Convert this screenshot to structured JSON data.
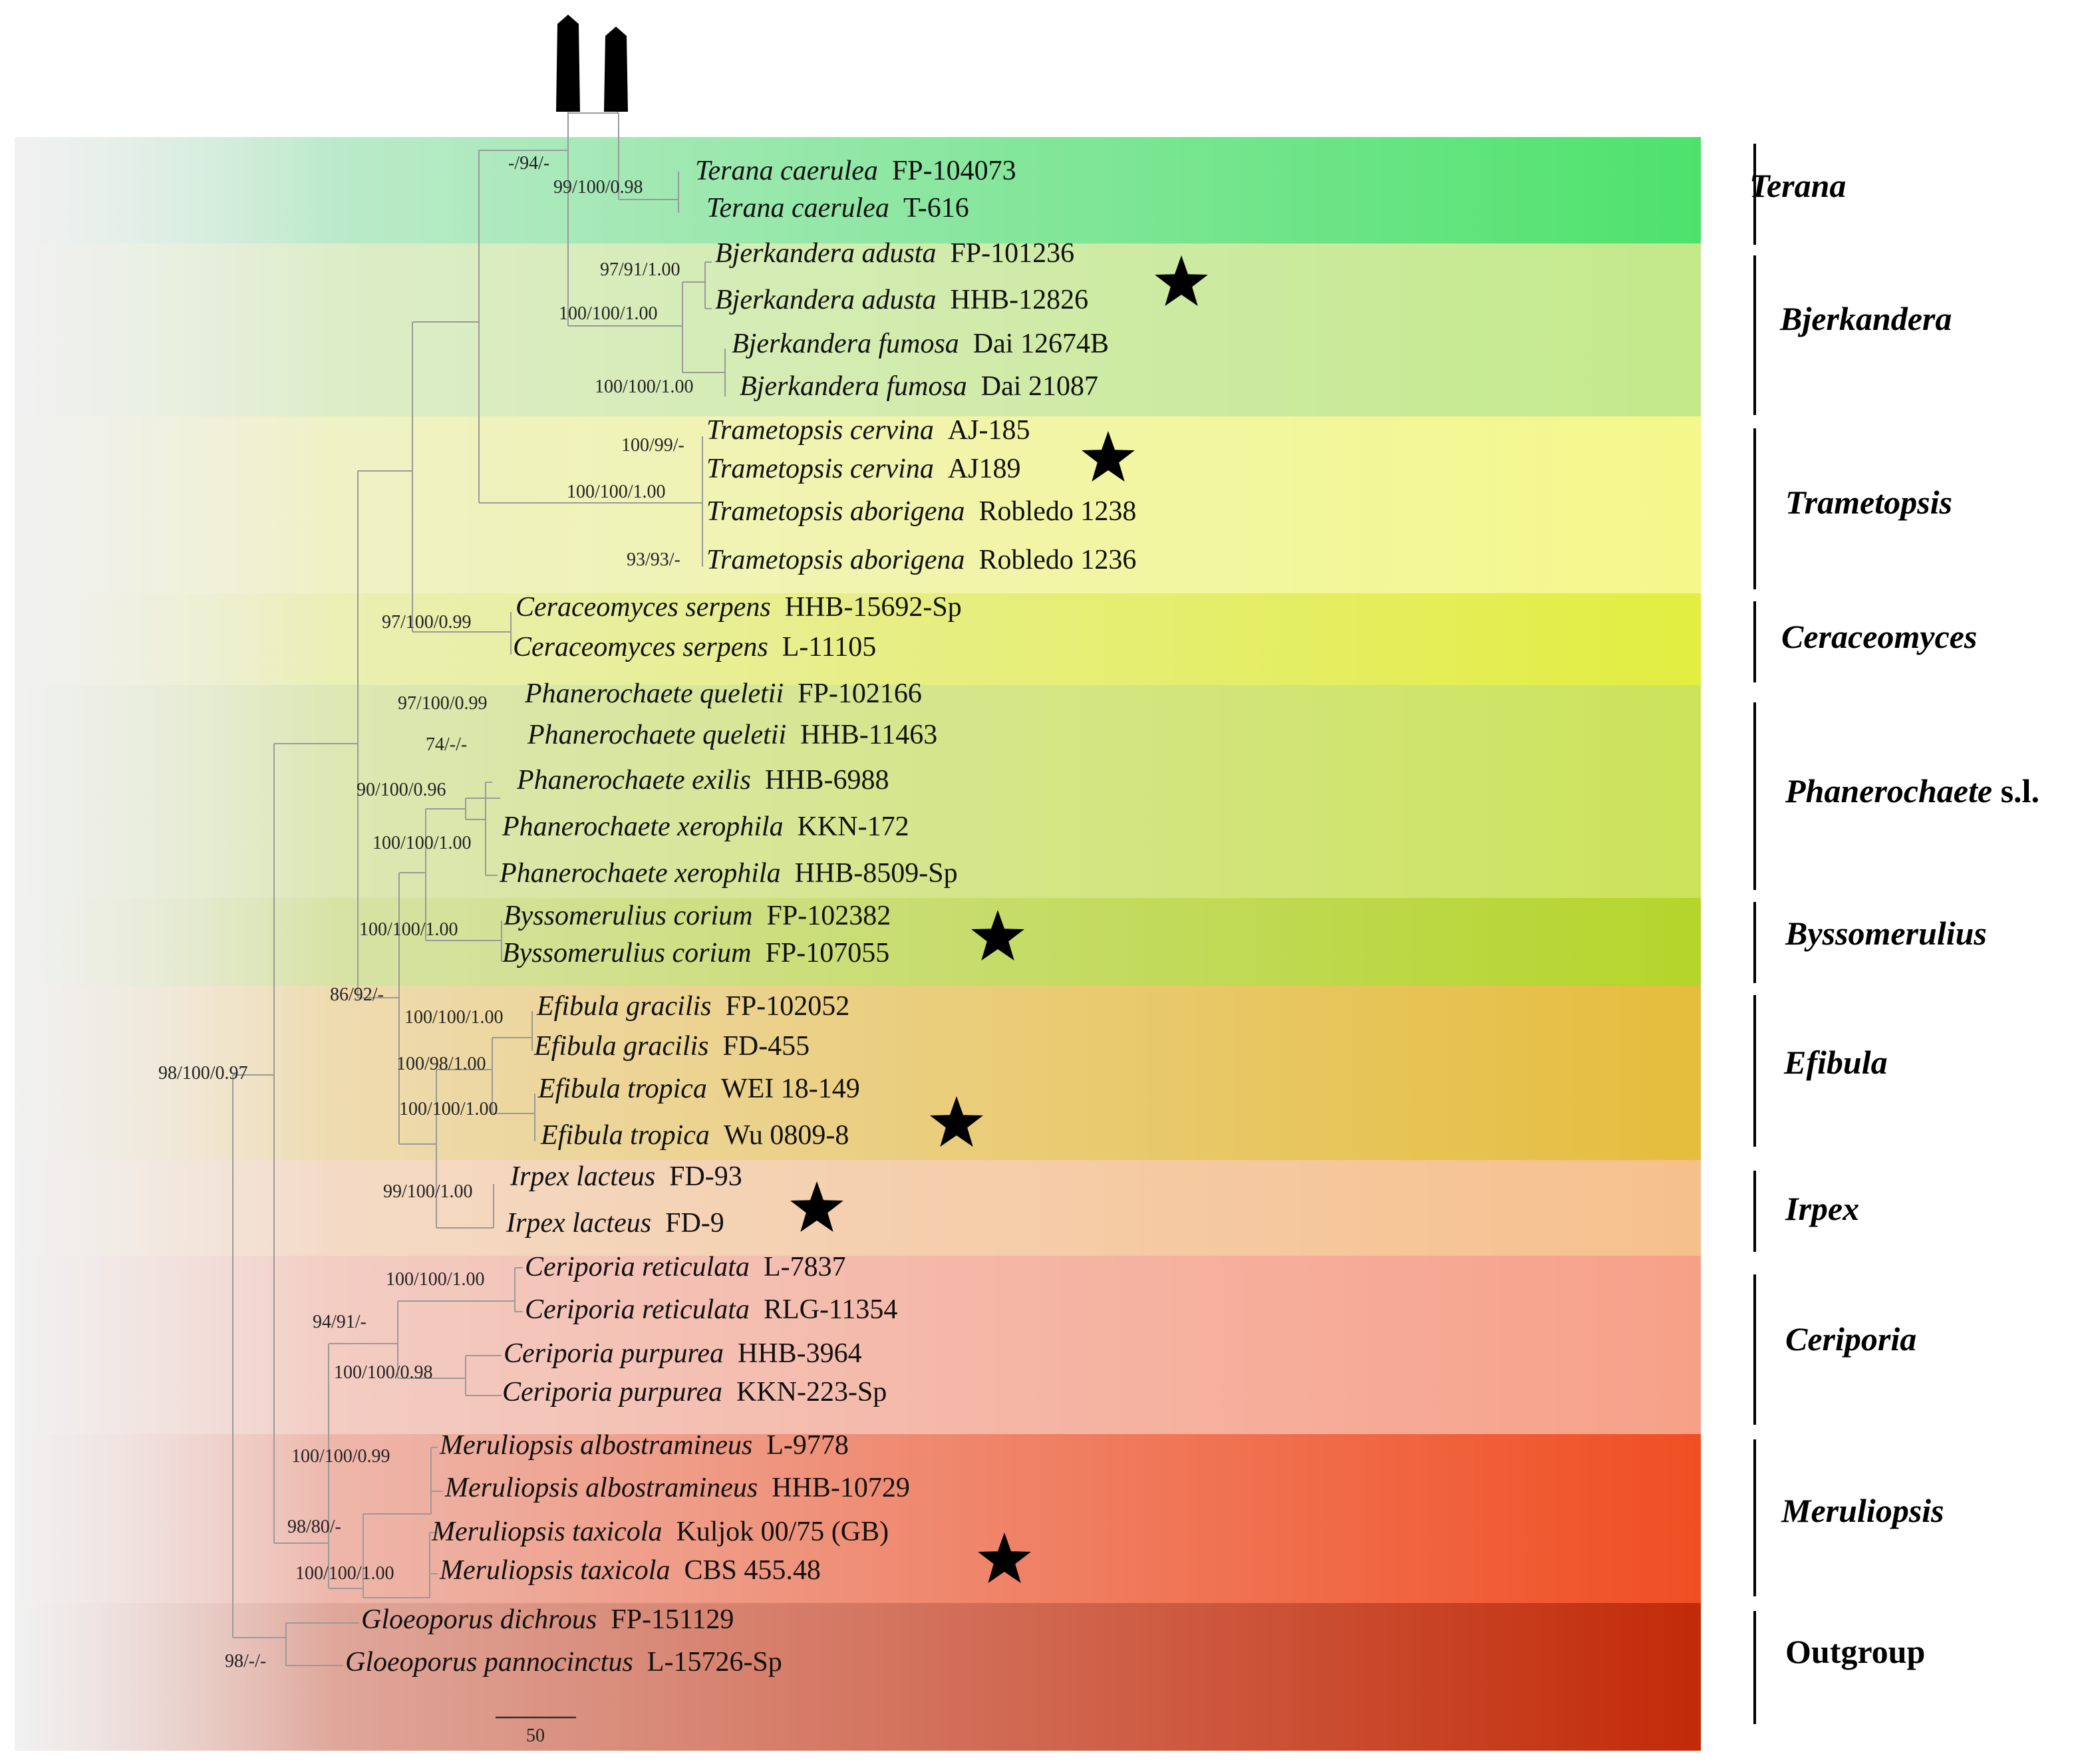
{
  "figure": {
    "scale_bar_label": "50",
    "bands": [
      {
        "id": "terana",
        "start": "#d4ecdf",
        "end": "#4ee26c"
      },
      {
        "id": "bjerkandera",
        "start": "#e3eed6",
        "end": "#c3e98a"
      },
      {
        "id": "trametopsis",
        "start": "#eef0d2",
        "end": "#f4f88a"
      },
      {
        "id": "ceraceomyces",
        "start": "#ecefcf",
        "end": "#e2ee40"
      },
      {
        "id": "phanerochaete",
        "start": "#e0e8c8",
        "end": "#cce35a"
      },
      {
        "id": "byssomerulius",
        "start": "#dfe6c2",
        "end": "#b4d52a"
      },
      {
        "id": "efibula",
        "start": "#f0e2ca",
        "end": "#e5bd3c"
      },
      {
        "id": "irpex",
        "start": "#f3e0d2",
        "end": "#f6c08c"
      },
      {
        "id": "ceriporia",
        "start": "#f2d6d0",
        "end": "#f7a088"
      },
      {
        "id": "meruliopsis",
        "start": "#eecfca",
        "end": "#f04e22"
      },
      {
        "id": "outgroup",
        "start": "#e6c4bc",
        "end": "#c22a08"
      }
    ],
    "taxa": [
      {
        "genus": "Terana caerulea",
        "code": "FP-104073"
      },
      {
        "genus": "Terana caerulea",
        "code": "T-616"
      },
      {
        "genus": "Bjerkandera adusta",
        "code": "FP-101236"
      },
      {
        "genus": "Bjerkandera adusta",
        "code": "HHB-12826"
      },
      {
        "genus": "Bjerkandera fumosa",
        "code": "Dai 12674B"
      },
      {
        "genus": "Bjerkandera fumosa",
        "code": "Dai 21087"
      },
      {
        "genus": "Trametopsis cervina",
        "code": "AJ-185"
      },
      {
        "genus": "Trametopsis cervina",
        "code": "AJ189"
      },
      {
        "genus": "Trametopsis aborigena",
        "code": "Robledo 1238"
      },
      {
        "genus": "Trametopsis aborigena",
        "code": "Robledo 1236"
      },
      {
        "genus": "Ceraceomyces serpens",
        "code": "HHB-15692-Sp"
      },
      {
        "genus": "Ceraceomyces serpens",
        "code": "L-11105"
      },
      {
        "genus": "Phanerochaete queletii",
        "code": "FP-102166"
      },
      {
        "genus": "Phanerochaete queletii",
        "code": "HHB-11463"
      },
      {
        "genus": "Phanerochaete exilis",
        "code": "HHB-6988"
      },
      {
        "genus": "Phanerochaete xerophila",
        "code": "KKN-172"
      },
      {
        "genus": "Phanerochaete xerophila",
        "code": "HHB-8509-Sp"
      },
      {
        "genus": "Byssomerulius corium",
        "code": "FP-102382"
      },
      {
        "genus": "Byssomerulius corium",
        "code": "FP-107055"
      },
      {
        "genus": "Efibula gracilis",
        "code": "FP-102052"
      },
      {
        "genus": "Efibula gracilis",
        "code": "FD-455"
      },
      {
        "genus": "Efibula tropica",
        "code": "WEI 18-149"
      },
      {
        "genus": "Efibula tropica",
        "code": "Wu 0809-8"
      },
      {
        "genus": "Irpex lacteus",
        "code": "FD-93"
      },
      {
        "genus": "Irpex lacteus",
        "code": "FD-9"
      },
      {
        "genus": "Ceriporia reticulata",
        "code": "L-7837"
      },
      {
        "genus": "Ceriporia reticulata",
        "code": "RLG-11354"
      },
      {
        "genus": "Ceriporia purpurea",
        "code": "HHB-3964"
      },
      {
        "genus": "Ceriporia purpurea",
        "code": "KKN-223-Sp"
      },
      {
        "genus": "Meruliopsis albostramineus",
        "code": "L-9778"
      },
      {
        "genus": "Meruliopsis albostramineus",
        "code": "HHB-10729"
      },
      {
        "genus": "Meruliopsis taxicola",
        "code": "Kuljok 00/75 (GB)"
      },
      {
        "genus": "Meruliopsis taxicola",
        "code": "CBS 455.48"
      },
      {
        "genus": "Gloeoporus dichrous",
        "code": "FP-151129"
      },
      {
        "genus": "Gloeoporus pannocinctus",
        "code": "L-15726-Sp"
      }
    ],
    "supports": [
      "-/94/-",
      "99/100/0.98",
      "97/91/1.00",
      "100/100/1.00",
      "100/100/1.00",
      "100/99/-",
      "100/100/1.00",
      "93/93/-",
      "97/100/0.99",
      "97/100/0.99",
      "74/-/-",
      "90/100/0.96",
      "100/100/1.00",
      "100/100/1.00",
      "86/92/-",
      "100/100/1.00",
      "100/98/1.00",
      "100/100/1.00",
      "98/100/0.97",
      "99/100/1.00",
      "100/100/1.00",
      "94/91/-",
      "100/100/0.98",
      "100/100/0.99",
      "98/80/-",
      "100/100/1.00",
      "98/-/-"
    ],
    "clades": [
      {
        "name": "Terana",
        "suffix": ""
      },
      {
        "name": "Bjerkandera",
        "suffix": ""
      },
      {
        "name": "Trametopsis",
        "suffix": ""
      },
      {
        "name": "Ceraceomyces",
        "suffix": ""
      },
      {
        "name": "Phanerochaete",
        "suffix": " s.l."
      },
      {
        "name": "Byssomerulius",
        "suffix": ""
      },
      {
        "name": "Efibula",
        "suffix": ""
      },
      {
        "name": "Irpex",
        "suffix": ""
      },
      {
        "name": "Ceriporia",
        "suffix": ""
      },
      {
        "name": "Meruliopsis",
        "suffix": ""
      },
      {
        "name": "Outgroup",
        "suffix": ""
      }
    ],
    "star_icon": "star-icon",
    "arrow_icon": "arrow-up-icon"
  }
}
